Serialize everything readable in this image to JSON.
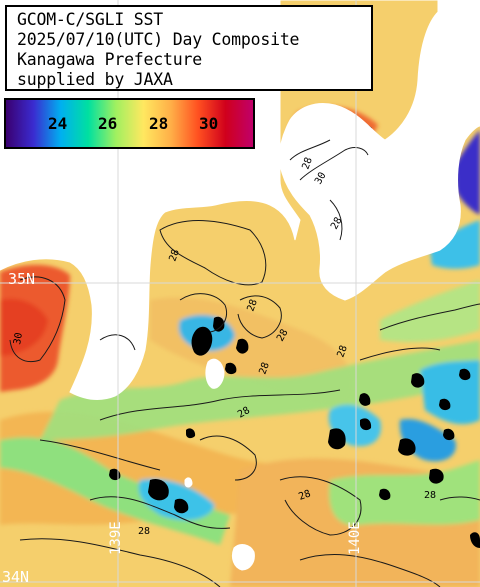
{
  "title": {
    "lines": [
      "GCOM-C/SGLI SST",
      "2025/07/10(UTC) Day Composite",
      "Kanagawa Prefecture",
      "supplied by JAXA"
    ]
  },
  "legend": {
    "labels": [
      "24",
      "26",
      "28",
      "30"
    ],
    "colors": [
      "#3a0070",
      "#3a2bd0",
      "#00b0f0",
      "#00e0a0",
      "#a0f060",
      "#ffe860",
      "#ffb048",
      "#ff5020",
      "#d0001c",
      "#c0006a"
    ]
  },
  "grid": {
    "lat_labels": [
      "35N",
      "34N"
    ],
    "lon_labels": [
      "139E",
      "140E"
    ]
  },
  "contour_labels": [
    "28",
    "28",
    "28",
    "28",
    "28",
    "28",
    "28",
    "28",
    "28",
    "30",
    "30",
    "28",
    "28"
  ],
  "colors": {
    "land": "#ffffff",
    "sea_base": "#f5d06a",
    "warm": "#f6b050",
    "hot": "#ee5a2c",
    "green": "#8ee07a",
    "cyan": "#2ec0e8",
    "blue": "#2030c0",
    "cloud": "#000000",
    "grid": "#d8d8d8"
  }
}
